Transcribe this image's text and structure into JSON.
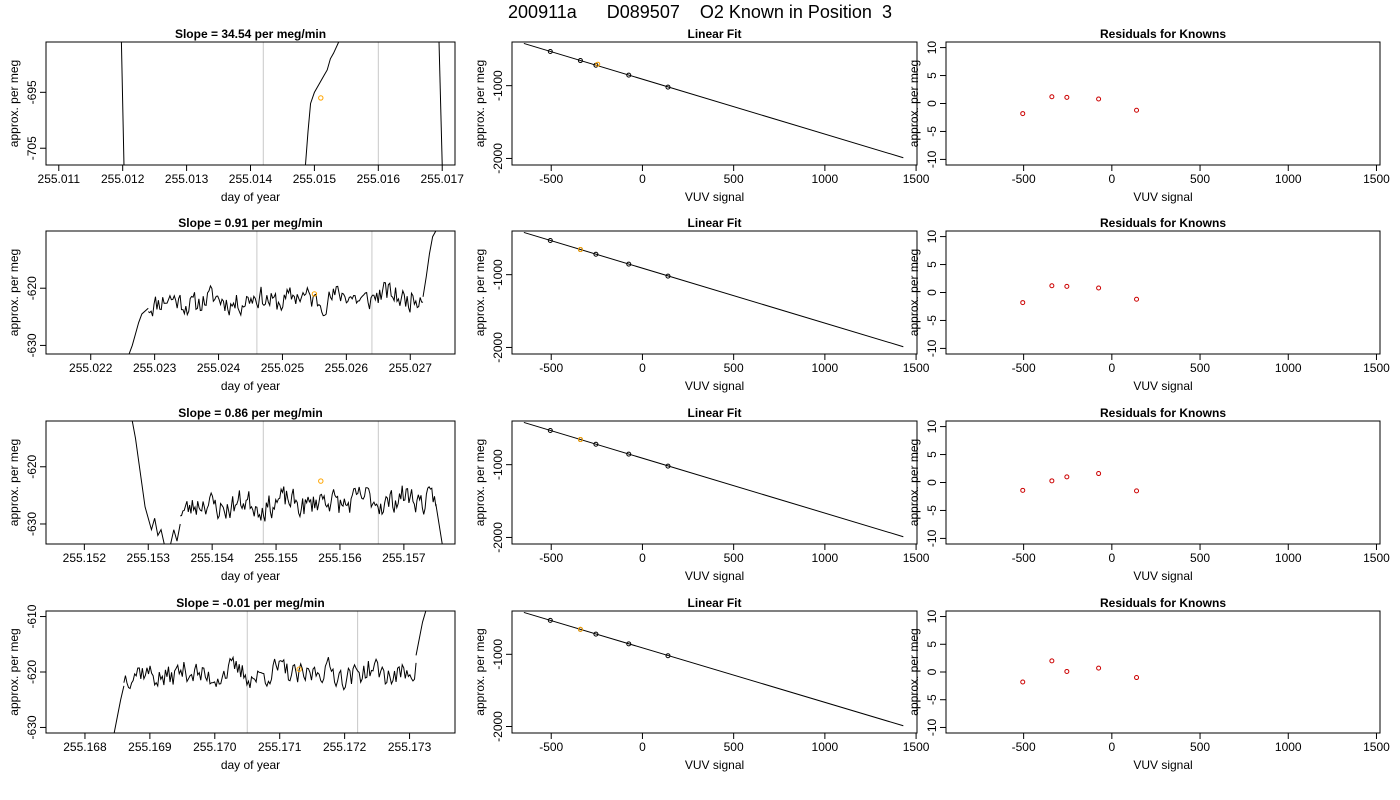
{
  "figure": {
    "title": "200911a      D089507    O2 Known in Position  3"
  },
  "colors": {
    "axis": "#000000",
    "trace": "#000000",
    "fit_line": "#000000",
    "vline": "#c8c8c8",
    "highlight_point": "#ffa500",
    "residual_point": "#cc0000"
  },
  "chart_data": [
    {
      "type": "line",
      "row": 1,
      "col": 1,
      "title": "Slope =  34.54  per meg/min",
      "xlabel": "day of year",
      "ylabel": "approx. per meg",
      "xlim": [
        255.0108,
        255.0172
      ],
      "ylim": [
        -708,
        -686
      ],
      "xticks": [
        255.011,
        255.012,
        255.013,
        255.014,
        255.015,
        255.016,
        255.017
      ],
      "xtick_labels": [
        "255.011",
        "255.012",
        "255.013",
        "255.014",
        "255.015",
        "255.016",
        "255.017"
      ],
      "yticks": [
        -695,
        -705
      ],
      "ytick_labels": [
        "-695",
        "-705"
      ],
      "vlines": [
        255.0142,
        255.016
      ],
      "highlight_point": {
        "x": 255.0151,
        "y": -696
      },
      "segments": [
        [
          [
            255.01198,
            -686
          ],
          [
            255.01202,
            -708
          ]
        ],
        [
          [
            255.01486,
            -708
          ],
          [
            255.0149,
            -702
          ],
          [
            255.01494,
            -697
          ],
          [
            255.015,
            -695
          ],
          [
            255.01505,
            -694
          ],
          [
            255.0151,
            -693
          ],
          [
            255.01515,
            -692
          ],
          [
            255.0152,
            -691
          ],
          [
            255.01525,
            -689
          ],
          [
            255.0153,
            -688
          ],
          [
            255.01538,
            -686
          ]
        ],
        [
          [
            255.01695,
            -686
          ],
          [
            255.017,
            -708
          ]
        ]
      ]
    },
    {
      "type": "scatter",
      "row": 1,
      "col": 2,
      "title": "Linear Fit",
      "xlabel": "VUV signal",
      "ylabel": "approx. per meg",
      "xlim": [
        -715,
        1505
      ],
      "ylim": [
        -2090,
        -400
      ],
      "xticks": [
        -500,
        0,
        500,
        1000,
        1500
      ],
      "xtick_labels": [
        "-500",
        "0",
        "500",
        "1000",
        "1500"
      ],
      "yticks": [
        -1000,
        -2000
      ],
      "ytick_labels": [
        "-1000",
        "-2000"
      ],
      "fit_line": [
        [
          -650,
          -420
        ],
        [
          1430,
          -1990
        ]
      ],
      "points": [
        {
          "x": -505,
          "y": -530,
          "color": "black"
        },
        {
          "x": -340,
          "y": -655,
          "color": "black"
        },
        {
          "x": -255,
          "y": -720,
          "color": "black"
        },
        {
          "x": -75,
          "y": -855,
          "color": "black"
        },
        {
          "x": 140,
          "y": -1020,
          "color": "black"
        },
        {
          "x": -245,
          "y": -705,
          "color": "orange"
        }
      ]
    },
    {
      "type": "scatter",
      "row": 1,
      "col": 3,
      "title": "Residuals for Knowns",
      "xlabel": "VUV signal",
      "ylabel": "approx. per meg",
      "xlim": [
        -940,
        1520
      ],
      "ylim": [
        -11,
        11
      ],
      "xticks": [
        -500,
        0,
        500,
        1000,
        1500
      ],
      "xtick_labels": [
        "-500",
        "0",
        "500",
        "1000",
        "1500"
      ],
      "yticks": [
        10,
        5,
        0,
        -5,
        -10
      ],
      "ytick_labels": [
        "10",
        "5",
        "0",
        "-5",
        "-10"
      ],
      "points": [
        {
          "x": -505,
          "y": -1.8
        },
        {
          "x": -340,
          "y": 1.2
        },
        {
          "x": -255,
          "y": 1.1
        },
        {
          "x": -75,
          "y": 0.8
        },
        {
          "x": 140,
          "y": -1.2
        }
      ]
    },
    {
      "type": "line",
      "row": 2,
      "col": 1,
      "title": "Slope =  0.91  per meg/min",
      "xlabel": "day of year",
      "ylabel": "approx. per meg",
      "xlim": [
        255.0213,
        255.0277
      ],
      "ylim": [
        -631.5,
        -610
      ],
      "xticks": [
        255.022,
        255.023,
        255.024,
        255.025,
        255.026,
        255.027
      ],
      "xtick_labels": [
        "255.022",
        "255.023",
        "255.024",
        "255.025",
        "255.026",
        "255.027"
      ],
      "yticks": [
        -620,
        -630
      ],
      "ytick_labels": [
        "-620",
        "-630"
      ],
      "vlines": [
        255.0246,
        255.0264
      ],
      "highlight_point": {
        "x": 255.0255,
        "y": -621
      },
      "noise": {
        "start": 255.0229,
        "end": 255.0272,
        "base": -622.5,
        "slope": 1.2,
        "amp": 1.3,
        "seed": 11
      },
      "segments": [
        [
          [
            255.0226,
            -631.5
          ],
          [
            255.02265,
            -630
          ],
          [
            255.0227,
            -628
          ],
          [
            255.02275,
            -626
          ],
          [
            255.0228,
            -624.5
          ],
          [
            255.0229,
            -623.5
          ]
        ],
        [
          [
            255.0272,
            -621.5
          ],
          [
            255.02725,
            -618
          ],
          [
            255.0273,
            -614
          ],
          [
            255.02735,
            -611
          ],
          [
            255.0274,
            -610
          ]
        ]
      ]
    },
    {
      "type": "scatter",
      "row": 2,
      "col": 2,
      "title": "Linear Fit",
      "xlabel": "VUV signal",
      "ylabel": "approx. per meg",
      "xlim": [
        -715,
        1505
      ],
      "ylim": [
        -2090,
        -400
      ],
      "xticks": [
        -500,
        0,
        500,
        1000,
        1500
      ],
      "xtick_labels": [
        "-500",
        "0",
        "500",
        "1000",
        "1500"
      ],
      "yticks": [
        -1000,
        -2000
      ],
      "ytick_labels": [
        "-1000",
        "-2000"
      ],
      "fit_line": [
        [
          -650,
          -420
        ],
        [
          1430,
          -1990
        ]
      ],
      "points": [
        {
          "x": -505,
          "y": -530,
          "color": "black"
        },
        {
          "x": -340,
          "y": -655,
          "color": "black"
        },
        {
          "x": -255,
          "y": -720,
          "color": "black"
        },
        {
          "x": -75,
          "y": -855,
          "color": "black"
        },
        {
          "x": 140,
          "y": -1020,
          "color": "black"
        },
        {
          "x": -340,
          "y": -655,
          "color": "orange"
        }
      ]
    },
    {
      "type": "scatter",
      "row": 2,
      "col": 3,
      "title": "Residuals for Knowns",
      "xlabel": "VUV signal",
      "ylabel": "approx. per meg",
      "xlim": [
        -940,
        1520
      ],
      "ylim": [
        -11,
        11
      ],
      "xticks": [
        -500,
        0,
        500,
        1000,
        1500
      ],
      "xtick_labels": [
        "-500",
        "0",
        "500",
        "1000",
        "1500"
      ],
      "yticks": [
        10,
        5,
        0,
        -5,
        -10
      ],
      "ytick_labels": [
        "10",
        "5",
        "0",
        "-5",
        "-10"
      ],
      "points": [
        {
          "x": -505,
          "y": -1.8
        },
        {
          "x": -340,
          "y": 1.2
        },
        {
          "x": -255,
          "y": 1.1
        },
        {
          "x": -75,
          "y": 0.8
        },
        {
          "x": 140,
          "y": -1.2
        }
      ]
    },
    {
      "type": "line",
      "row": 3,
      "col": 1,
      "title": "Slope =  0.86  per meg/min",
      "xlabel": "day of year",
      "ylabel": "approx. per meg",
      "xlim": [
        255.1514,
        255.1578
      ],
      "ylim": [
        -633.5,
        -612
      ],
      "xticks": [
        255.152,
        255.153,
        255.154,
        255.155,
        255.156,
        255.157
      ],
      "xtick_labels": [
        "255.152",
        "255.153",
        "255.154",
        "255.155",
        "255.156",
        "255.157"
      ],
      "yticks": [
        -620,
        -630
      ],
      "ytick_labels": [
        "-620",
        "-630"
      ],
      "vlines": [
        255.1548,
        255.1566
      ],
      "highlight_point": {
        "x": 255.1557,
        "y": -622.5
      },
      "noise": {
        "start": 255.1535,
        "end": 255.1575,
        "base": -627,
        "slope": 1.5,
        "amp": 1.4,
        "seed": 23
      },
      "segments": [
        [
          [
            255.15275,
            -612
          ],
          [
            255.1528,
            -615
          ],
          [
            255.15285,
            -619
          ],
          [
            255.1529,
            -623
          ],
          [
            255.15295,
            -627
          ],
          [
            255.153,
            -629
          ],
          [
            255.15305,
            -631
          ],
          [
            255.1531,
            -629
          ],
          [
            255.15315,
            -632
          ],
          [
            255.1532,
            -631
          ],
          [
            255.15325,
            -633.5
          ]
        ],
        [
          [
            255.15335,
            -633.5
          ],
          [
            255.1534,
            -631
          ],
          [
            255.15345,
            -633
          ],
          [
            255.1535,
            -630
          ]
        ],
        [
          [
            255.1575,
            -626.5
          ],
          [
            255.15755,
            -630
          ],
          [
            255.1576,
            -633.5
          ]
        ]
      ]
    },
    {
      "type": "scatter",
      "row": 3,
      "col": 2,
      "title": "Linear Fit",
      "xlabel": "VUV signal",
      "ylabel": "approx. per meg",
      "xlim": [
        -715,
        1505
      ],
      "ylim": [
        -2090,
        -400
      ],
      "xticks": [
        -500,
        0,
        500,
        1000,
        1500
      ],
      "xtick_labels": [
        "-500",
        "0",
        "500",
        "1000",
        "1500"
      ],
      "yticks": [
        -1000,
        -2000
      ],
      "ytick_labels": [
        "-1000",
        "-2000"
      ],
      "fit_line": [
        [
          -650,
          -420
        ],
        [
          1430,
          -1990
        ]
      ],
      "points": [
        {
          "x": -505,
          "y": -530,
          "color": "black"
        },
        {
          "x": -340,
          "y": -655,
          "color": "black"
        },
        {
          "x": -255,
          "y": -720,
          "color": "black"
        },
        {
          "x": -75,
          "y": -855,
          "color": "black"
        },
        {
          "x": 140,
          "y": -1020,
          "color": "black"
        },
        {
          "x": -340,
          "y": -655,
          "color": "orange"
        }
      ]
    },
    {
      "type": "scatter",
      "row": 3,
      "col": 3,
      "title": "Residuals for Knowns",
      "xlabel": "VUV signal",
      "ylabel": "approx. per meg",
      "xlim": [
        -940,
        1520
      ],
      "ylim": [
        -11,
        11
      ],
      "xticks": [
        -500,
        0,
        500,
        1000,
        1500
      ],
      "xtick_labels": [
        "-500",
        "0",
        "500",
        "1000",
        "1500"
      ],
      "yticks": [
        10,
        5,
        0,
        -5,
        -10
      ],
      "ytick_labels": [
        "10",
        "5",
        "0",
        "-5",
        "-10"
      ],
      "points": [
        {
          "x": -505,
          "y": -1.4
        },
        {
          "x": -340,
          "y": 0.3
        },
        {
          "x": -255,
          "y": 1.0
        },
        {
          "x": -75,
          "y": 1.6
        },
        {
          "x": 140,
          "y": -1.5
        }
      ]
    },
    {
      "type": "line",
      "row": 4,
      "col": 1,
      "title": "Slope =  -0.01  per meg/min",
      "xlabel": "day of year",
      "ylabel": "approx. per meg",
      "xlim": [
        255.1674,
        255.1737
      ],
      "ylim": [
        -631,
        -609
      ],
      "xticks": [
        255.168,
        255.169,
        255.17,
        255.171,
        255.172,
        255.173
      ],
      "xtick_labels": [
        "255.168",
        "255.169",
        "255.170",
        "255.171",
        "255.172",
        "255.173"
      ],
      "yticks": [
        -610,
        -620,
        -630
      ],
      "ytick_labels": [
        "-610",
        "-620",
        "-630"
      ],
      "vlines": [
        255.1705,
        255.1722
      ],
      "highlight_point": {
        "x": 255.1713,
        "y": -619.5
      },
      "noise": {
        "start": 255.1686,
        "end": 255.1731,
        "base": -620.5,
        "slope": 0.4,
        "amp": 1.4,
        "seed": 37
      },
      "segments": [
        [
          [
            255.16845,
            -631
          ],
          [
            255.1685,
            -628
          ],
          [
            255.16855,
            -625
          ],
          [
            255.1686,
            -622.5
          ]
        ],
        [
          [
            255.1731,
            -617
          ],
          [
            255.17315,
            -614
          ],
          [
            255.1732,
            -611
          ],
          [
            255.17325,
            -609
          ]
        ]
      ]
    },
    {
      "type": "scatter",
      "row": 4,
      "col": 2,
      "title": "Linear Fit",
      "xlabel": "VUV signal",
      "ylabel": "approx. per meg",
      "xlim": [
        -715,
        1505
      ],
      "ylim": [
        -2090,
        -400
      ],
      "xticks": [
        -500,
        0,
        500,
        1000,
        1500
      ],
      "xtick_labels": [
        "-500",
        "0",
        "500",
        "1000",
        "1500"
      ],
      "yticks": [
        -1000,
        -2000
      ],
      "ytick_labels": [
        "-1000",
        "-2000"
      ],
      "fit_line": [
        [
          -650,
          -420
        ],
        [
          1430,
          -1990
        ]
      ],
      "points": [
        {
          "x": -505,
          "y": -530,
          "color": "black"
        },
        {
          "x": -340,
          "y": -655,
          "color": "black"
        },
        {
          "x": -255,
          "y": -720,
          "color": "black"
        },
        {
          "x": -75,
          "y": -855,
          "color": "black"
        },
        {
          "x": 140,
          "y": -1020,
          "color": "black"
        },
        {
          "x": -340,
          "y": -655,
          "color": "orange"
        }
      ]
    },
    {
      "type": "scatter",
      "row": 4,
      "col": 3,
      "title": "Residuals for Knowns",
      "xlabel": "VUV signal",
      "ylabel": "approx. per meg",
      "xlim": [
        -940,
        1520
      ],
      "ylim": [
        -11,
        11
      ],
      "xticks": [
        -500,
        0,
        500,
        1000,
        1500
      ],
      "xtick_labels": [
        "-500",
        "0",
        "500",
        "1000",
        "1500"
      ],
      "yticks": [
        10,
        5,
        0,
        -5,
        -10
      ],
      "ytick_labels": [
        "10",
        "5",
        "0",
        "-5",
        "-10"
      ],
      "points": [
        {
          "x": -505,
          "y": -1.8
        },
        {
          "x": -340,
          "y": 2.0
        },
        {
          "x": -255,
          "y": 0.1
        },
        {
          "x": -75,
          "y": 0.7
        },
        {
          "x": 140,
          "y": -1.0
        }
      ]
    }
  ]
}
